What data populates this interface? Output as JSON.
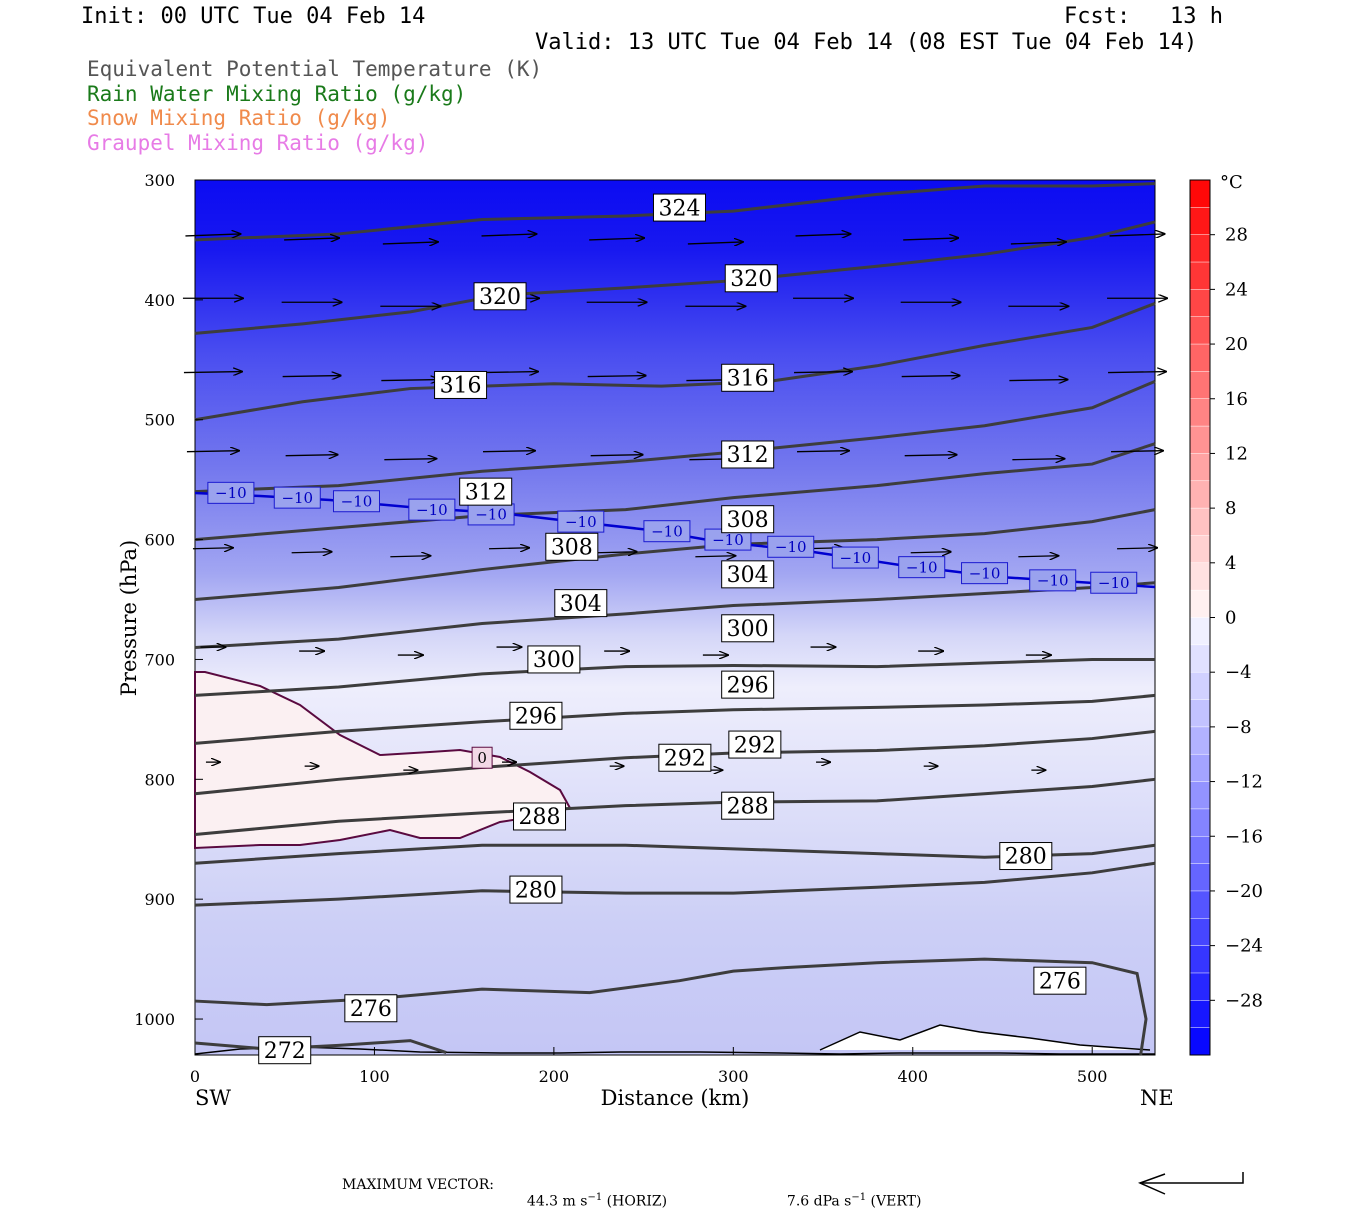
{
  "header": {
    "init": "Init: 00 UTC Tue 04 Feb 14",
    "fcst": "Fcst:   13 h",
    "valid": "Valid: 13 UTC Tue 04 Feb 14 (08 EST Tue 04 Feb 14)"
  },
  "variables": [
    {
      "label": "Equivalent Potential Temperature (K)",
      "color": "#555555"
    },
    {
      "label": "Rain Water Mixing Ratio (g/kg)",
      "color": "#1a7a1a"
    },
    {
      "label": "Snow Mixing Ratio (g/kg)",
      "color": "#f08a4b"
    },
    {
      "label": "Graupel Mixing Ratio (g/kg)",
      "color": "#e77be6"
    }
  ],
  "chart_data": {
    "type": "heatmap",
    "xlabel": "Distance (km)",
    "ylabel": "Pressure (hPa)",
    "x_ticks": [
      0,
      100,
      200,
      300,
      400,
      500
    ],
    "xlim": [
      0,
      535
    ],
    "y_ticks": [
      300,
      400,
      500,
      600,
      700,
      800,
      900,
      1000
    ],
    "ylim": [
      300,
      1030
    ],
    "x_end_labels": {
      "left": "SW",
      "right": "NE"
    },
    "colorbar": {
      "unit": "°C",
      "ticks": [
        "28",
        "24",
        "20",
        "16",
        "12",
        "8",
        "4",
        "0",
        "−4",
        "−8",
        "−12",
        "−16",
        "−20",
        "−24",
        "−28"
      ],
      "range": [
        -32,
        32
      ],
      "step": 4
    },
    "theta_e_labels": [
      {
        "text": "324",
        "x": 270,
        "p": 323
      },
      {
        "text": "320",
        "x": 310,
        "p": 382
      },
      {
        "text": "320",
        "x": 170,
        "p": 397
      },
      {
        "text": "316",
        "x": 148,
        "p": 471
      },
      {
        "text": "316",
        "x": 308,
        "p": 465
      },
      {
        "text": "312",
        "x": 308,
        "p": 529
      },
      {
        "text": "312",
        "x": 162,
        "p": 560
      },
      {
        "text": "308",
        "x": 308,
        "p": 583
      },
      {
        "text": "308",
        "x": 210,
        "p": 606
      },
      {
        "text": "304",
        "x": 308,
        "p": 629
      },
      {
        "text": "304",
        "x": 215,
        "p": 653
      },
      {
        "text": "300",
        "x": 308,
        "p": 674
      },
      {
        "text": "300",
        "x": 200,
        "p": 700
      },
      {
        "text": "296",
        "x": 308,
        "p": 721
      },
      {
        "text": "296",
        "x": 190,
        "p": 747
      },
      {
        "text": "292",
        "x": 273,
        "p": 782
      },
      {
        "text": "292",
        "x": 312,
        "p": 771
      },
      {
        "text": "288",
        "x": 308,
        "p": 822
      },
      {
        "text": "288",
        "x": 192,
        "p": 831
      },
      {
        "text": "280",
        "x": 463,
        "p": 864
      },
      {
        "text": "280",
        "x": 190,
        "p": 892
      },
      {
        "text": "276",
        "x": 482,
        "p": 968
      },
      {
        "text": "276",
        "x": 98,
        "p": 991
      },
      {
        "text": "272",
        "x": 50,
        "p": 1026
      }
    ],
    "isotherm_labels": [
      {
        "text": "−10",
        "x": 20,
        "p": 561
      },
      {
        "text": "−10",
        "x": 57,
        "p": 565
      },
      {
        "text": "−10",
        "x": 90,
        "p": 568
      },
      {
        "text": "−10",
        "x": 132,
        "p": 575
      },
      {
        "text": "−10",
        "x": 165,
        "p": 579
      },
      {
        "text": "−10",
        "x": 215,
        "p": 585
      },
      {
        "text": "−10",
        "x": 263,
        "p": 593
      },
      {
        "text": "−10",
        "x": 297,
        "p": 600
      },
      {
        "text": "−10",
        "x": 332,
        "p": 606
      },
      {
        "text": "−10",
        "x": 368,
        "p": 615
      },
      {
        "text": "−10",
        "x": 405,
        "p": 623
      },
      {
        "text": "−10",
        "x": 440,
        "p": 628
      },
      {
        "text": "−10",
        "x": 478,
        "p": 634
      },
      {
        "text": "−10",
        "x": 512,
        "p": 636
      }
    ],
    "zero_label": {
      "text": "0",
      "x": 160,
      "p": 782
    }
  },
  "footer": {
    "prefix": "MAXIMUM VECTOR:",
    "horiz": "44.3 m s",
    "horiz_exp": "−1",
    "horiz_tail": " (HORIZ)",
    "vert": "7.6 dPa s",
    "vert_exp": "−1",
    "vert_tail": " (VERT)"
  }
}
